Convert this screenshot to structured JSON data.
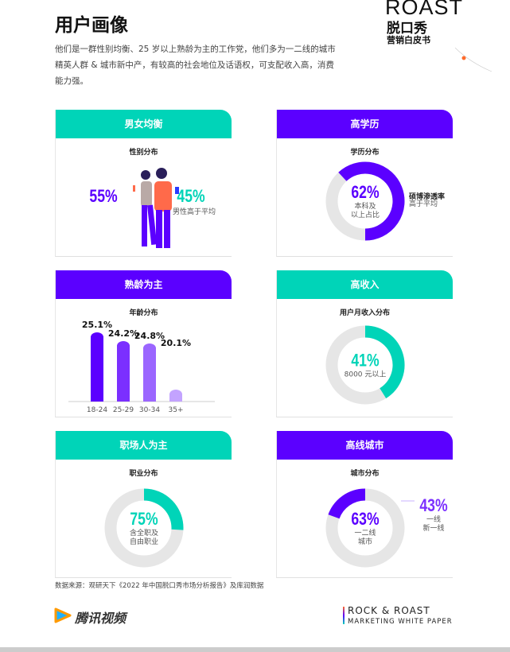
{
  "title": "用户画像",
  "intro": "他们是一群性别均衡、25 岁以上熟龄为主的工作党，他们多为一二线的城市精英人群 & 城市新中产，有较高的社会地位及话语权，可支配收入高，消费能力强。",
  "brand": {
    "logo_en": "ROAST",
    "logo_cn": "脱口秀",
    "logo_sub": "营销白皮书"
  },
  "colors": {
    "teal": "#00D4B8",
    "purple": "#5B00FF",
    "ring": "#E6E6E6"
  },
  "cards": {
    "gender": {
      "header": "男女均衡",
      "subtitle": "性别分布",
      "female": "55%",
      "male": "45%",
      "male_note": "男性高于平均"
    },
    "education": {
      "header": "高学历",
      "subtitle": "学历分布",
      "value": "62%",
      "label1": "本科及",
      "label2": "以上占比",
      "note_title": "硕博渗透率",
      "note": "高于平均"
    },
    "age": {
      "header": "熟龄为主",
      "subtitle": "年龄分布"
    },
    "income": {
      "header": "高收入",
      "subtitle": "用户月收入分布",
      "value": "41%",
      "label": "8000 元以上"
    },
    "occupation": {
      "header": "职场人为主",
      "subtitle": "职业分布",
      "value": "75%",
      "label1": "含全职及",
      "label2": "自由职业"
    },
    "city": {
      "header": "高线城市",
      "subtitle": "城市分布",
      "value": "63%",
      "label1": "一二线",
      "label2": "城市",
      "side_value": "43%",
      "side1": "一线",
      "side2": "新一线"
    }
  },
  "chart_data": {
    "type": "bar",
    "title": "年龄分布",
    "categories": [
      "18-24",
      "25-29",
      "30-34",
      "35+"
    ],
    "labels": [
      "25.1%",
      "24.2%",
      "24.8%",
      "20.1%"
    ],
    "values": [
      25.1,
      24.2,
      24.8,
      20.1
    ],
    "colors": [
      "#5B00FF",
      "#7B2FFF",
      "#9B66FF",
      "#C3A3FF"
    ]
  },
  "footer": {
    "source": "数据来源：观研天下《2022 年中国脱口秀市场分析报告》及库润数据",
    "tencent": "腾讯视频",
    "rr1": "ROCK & ROAST",
    "rr2": "MARKETING WHITE PAPER"
  }
}
